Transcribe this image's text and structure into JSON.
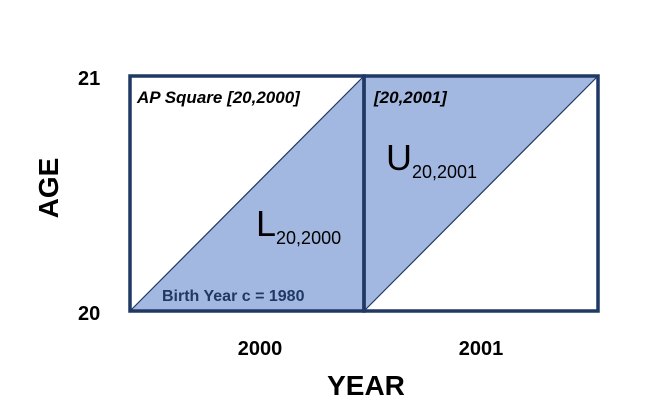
{
  "diagram": {
    "y_axis": {
      "title": "AGE",
      "ticks": [
        "21",
        "20"
      ]
    },
    "x_axis": {
      "title": "YEAR",
      "ticks": [
        "2000",
        "2001"
      ]
    },
    "squares": [
      {
        "label": "AP Square [20,2000]"
      },
      {
        "label": "[20,2001]"
      }
    ],
    "regions": [
      {
        "symbol": "L",
        "subscript": "20,2000"
      },
      {
        "symbol": "U",
        "subscript": "20,2001"
      }
    ],
    "cohort_label": "Birth Year c = 1980",
    "colors": {
      "fill": "#a3b8e0",
      "border": "#1f3864",
      "diagonal": "#1f3864"
    }
  }
}
